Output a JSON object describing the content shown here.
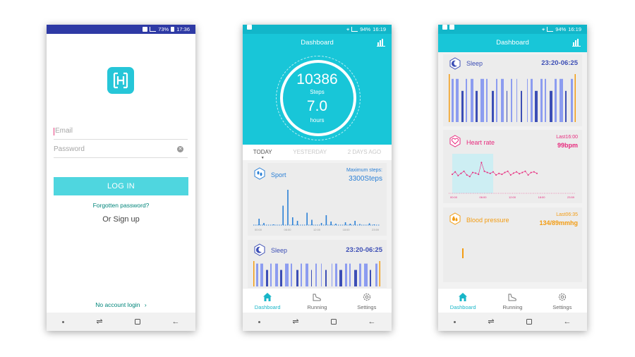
{
  "colors": {
    "accent": "#18c6d8",
    "login_statusbar": "#2e3aa5",
    "sleep_light": "#8c9cf0",
    "sleep_deep": "#3c4eb5",
    "heart": "#e72a7d",
    "bp": "#f39c12",
    "sport": "#2b80d6"
  },
  "login": {
    "status_time": "17:36",
    "status_battery": "73%",
    "email_placeholder": "Email",
    "password_placeholder": "Password",
    "login_button": "LOG IN",
    "forgot_link": "Forgotten password?",
    "signup_text": "Or Sign up",
    "no_account_link": "No account login"
  },
  "dashboard1": {
    "status_time": "16:19",
    "status_battery": "94%",
    "title": "Dashboard",
    "steps_value": "10386",
    "steps_label": "Steps",
    "hours_value": "7.0",
    "hours_label": "hours",
    "tabs": [
      "TODAY",
      "YESTERDAY",
      "2 DAYS AGO"
    ],
    "sport": {
      "title": "Sport",
      "max_label": "Maximum steps:",
      "max_value": "3300Steps",
      "bars": [
        0.18,
        0.06,
        0.0,
        0.02,
        0.0,
        0.55,
        1.0,
        0.22,
        0.12,
        0.0,
        0.35,
        0.15,
        0.0,
        0.06,
        0.28,
        0.1,
        0.04,
        0.0,
        0.08,
        0.04,
        0.12,
        0.03,
        0.0,
        0.05,
        0.02
      ],
      "ticks": [
        "00:00",
        "06:00",
        "12:00",
        "18:00",
        "23:59"
      ]
    },
    "sleep": {
      "title": "Sleep",
      "range": "23:20-06:25"
    }
  },
  "dashboard2": {
    "status_time": "16:19",
    "status_battery": "94%",
    "title": "Dashboard",
    "sleep": {
      "title": "Sleep",
      "range": "23:20-06:25"
    },
    "heart": {
      "title": "Heart rate",
      "last_label": "Last16:00",
      "last_value": "99bpm",
      "values": [
        0.52,
        0.6,
        0.48,
        0.55,
        0.62,
        0.5,
        0.45,
        0.58,
        0.56,
        0.52,
        0.9,
        0.62,
        0.58,
        0.55,
        0.6,
        0.5,
        0.55,
        0.52,
        0.58,
        0.62,
        0.5,
        0.56,
        0.6,
        0.54,
        0.58,
        0.62,
        0.5,
        0.58,
        0.6,
        0.55
      ],
      "ticks": [
        "00:00",
        "06:00",
        "12:00",
        "18:00",
        "23:59"
      ]
    },
    "bp": {
      "title": "Blood pressure",
      "last_label": "Last06:35",
      "last_value": "134/89mmhg"
    }
  },
  "bottom_nav": [
    "Dashboard",
    "Running",
    "Settings"
  ]
}
